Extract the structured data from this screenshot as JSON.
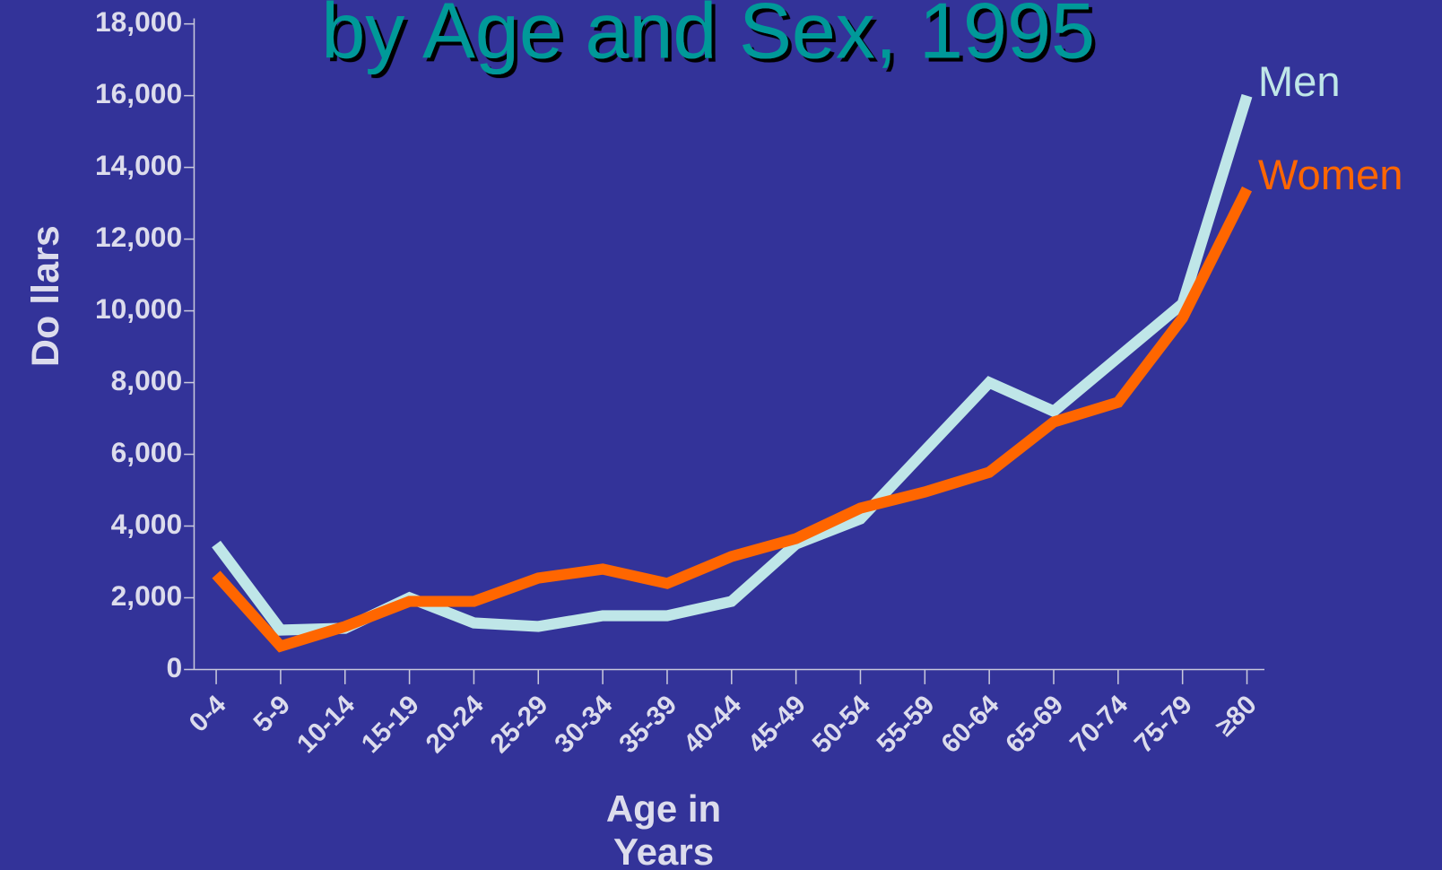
{
  "chart_data": {
    "type": "line",
    "title": "by Age and Sex, 1995",
    "ylabel": "Do llars",
    "xlabel": "Age in\nYears",
    "categories": [
      "0-4",
      "5-9",
      "10-14",
      "15-19",
      "20-24",
      "25-29",
      "30-34",
      "35-39",
      "40-44",
      "45-49",
      "50-54",
      "55-59",
      "60-64",
      "65-69",
      "70-74",
      "75-79",
      "≥80"
    ],
    "series": [
      {
        "name": "Men",
        "color": "#bfe6e8",
        "values": [
          3500,
          1100,
          1150,
          2000,
          1300,
          1200,
          1500,
          1500,
          1900,
          3500,
          4200,
          6100,
          8000,
          7200,
          8700,
          10200,
          16000
        ]
      },
      {
        "name": "Women",
        "color": "#ff6600",
        "values": [
          2650,
          650,
          1200,
          1900,
          1900,
          2550,
          2800,
          2400,
          3150,
          3650,
          4500,
          4950,
          5500,
          6900,
          7450,
          9800,
          13400
        ]
      }
    ],
    "ylim": [
      0,
      18000
    ],
    "yticks": [
      0,
      {
        "value": 2000,
        "label": "2,000"
      },
      {
        "value": 4000,
        "label": "4,000"
      },
      {
        "value": 6000,
        "label": "6,000"
      },
      {
        "value": 8000,
        "label": "8,000"
      },
      {
        "value": 10000,
        "label": "10,000"
      },
      {
        "value": 12000,
        "label": "12,000"
      },
      {
        "value": 14000,
        "label": "14,000"
      },
      {
        "value": 16000,
        "label": "16,000"
      },
      {
        "value": 18000,
        "label": "18,000"
      }
    ]
  }
}
